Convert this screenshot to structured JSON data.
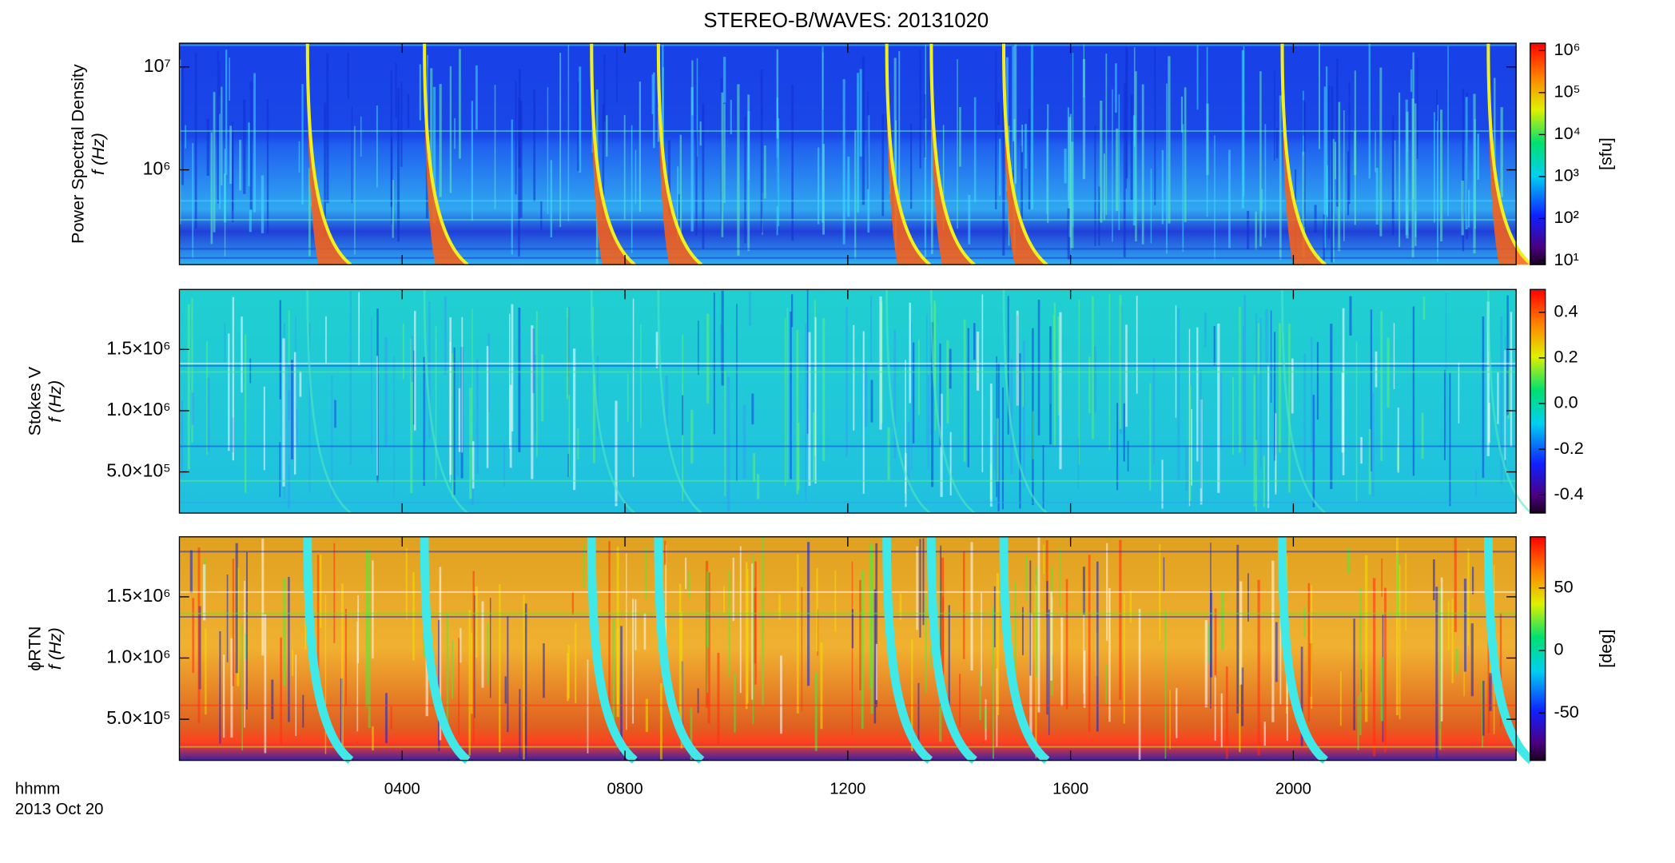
{
  "title": "STEREO-B/WAVES: 20131020",
  "x_axis": {
    "label": "hhmm",
    "date": "2013 Oct 20",
    "xlim": [
      0,
      24
    ],
    "xticks": [
      {
        "value": 4,
        "label": "0400"
      },
      {
        "value": 8,
        "label": "0800"
      },
      {
        "value": 12,
        "label": "1200"
      },
      {
        "value": 16,
        "label": "1600"
      },
      {
        "value": 20,
        "label": "2000"
      }
    ]
  },
  "chart_data": [
    {
      "type": "spectrogram",
      "y_label": [
        "Power Spectral Density",
        "f (Hz)"
      ],
      "log_y": true,
      "ylim": [
        120000,
        17000000
      ],
      "yticks": [
        {
          "value": 1000000,
          "label": "10⁶"
        },
        {
          "value": 10000000,
          "label": "10⁷"
        }
      ],
      "colorbar": {
        "label": "[sfu]",
        "log": true,
        "clim": [
          8,
          1500000
        ],
        "ticks": [
          {
            "value": 10,
            "label": "10¹"
          },
          {
            "value": 100,
            "label": "10²"
          },
          {
            "value": 1000,
            "label": "10³"
          },
          {
            "value": 10000,
            "label": "10⁴"
          },
          {
            "value": 100000,
            "label": "10⁵"
          },
          {
            "value": 1000000,
            "label": "10⁶"
          }
        ]
      }
    },
    {
      "type": "spectrogram",
      "y_label": [
        "Stokes V",
        "f (Hz)"
      ],
      "log_y": false,
      "ylim": [
        164000,
        1990000
      ],
      "yticks": [
        {
          "value": 500000,
          "label": "5.0×10⁵"
        },
        {
          "value": 1000000,
          "label": "1.0×10⁶"
        },
        {
          "value": 1500000,
          "label": "1.5×10⁶"
        }
      ],
      "colorbar": {
        "log": false,
        "clim": [
          -0.48,
          0.5
        ],
        "ticks": [
          {
            "value": -0.4,
            "label": "-0.4"
          },
          {
            "value": -0.2,
            "label": "-0.2"
          },
          {
            "value": 0,
            "label": "0.0"
          },
          {
            "value": 0.2,
            "label": "0.2"
          },
          {
            "value": 0.4,
            "label": "0.4"
          }
        ]
      }
    },
    {
      "type": "spectrogram",
      "y_label": [
        "ϕRTN",
        "f (Hz)"
      ],
      "log_y": false,
      "ylim": [
        164000,
        1990000
      ],
      "yticks": [
        {
          "value": 500000,
          "label": "5.0×10⁵"
        },
        {
          "value": 1000000,
          "label": "1.0×10⁶"
        },
        {
          "value": 1500000,
          "label": "1.5×10⁶"
        }
      ],
      "colorbar": {
        "label": "[deg]",
        "log": false,
        "clim": [
          -88,
          91
        ],
        "ticks": [
          -50,
          0,
          50
        ]
      }
    }
  ]
}
